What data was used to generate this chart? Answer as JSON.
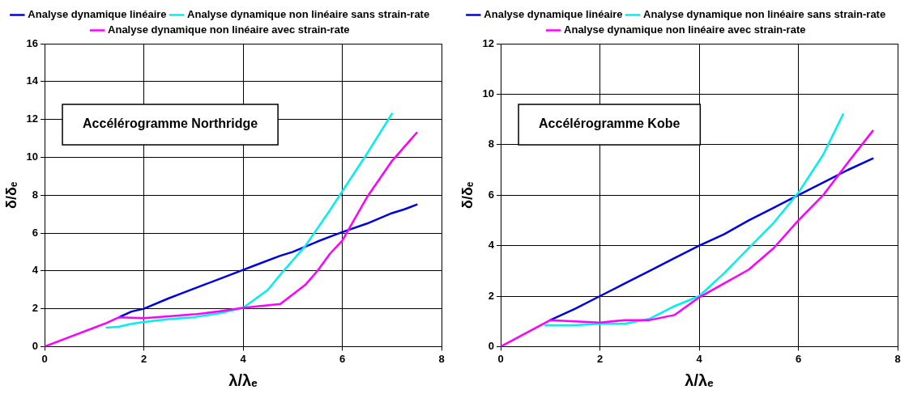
{
  "chart_data": [
    {
      "type": "line",
      "xlabel": "λ/λₑ",
      "ylabel": "δ/δₑ",
      "annotations": [
        "Accélérogramme Northridge"
      ],
      "xlim": [
        0,
        8
      ],
      "xticks": [
        0,
        2,
        4,
        6,
        8
      ],
      "ylim": [
        0,
        16
      ],
      "yticks": [
        0,
        2,
        4,
        6,
        8,
        10,
        12,
        14,
        16
      ],
      "grid": true,
      "legend": "top",
      "marker": "none",
      "line_style": "solid",
      "series": [
        {
          "name": "Analyse dynamique linéaire",
          "color": "#0000e6",
          "x": [
            1.5,
            1.75,
            2,
            2.5,
            2.75,
            3.25,
            3.5,
            4,
            4.25,
            4.75,
            5,
            5.5,
            5.75,
            6,
            6.5,
            7,
            7.25,
            7.5
          ],
          "values": [
            1.55,
            1.85,
            2,
            2.55,
            2.8,
            3.3,
            3.55,
            4.05,
            4.3,
            4.8,
            5,
            5.55,
            5.8,
            6.05,
            6.5,
            7.05,
            7.25,
            7.5
          ]
        },
        {
          "name": "Analyse dynamique non linéaire sans strain-rate",
          "color": "#00f0f0",
          "x": [
            1.25,
            1.5,
            1.75,
            2,
            2.5,
            3,
            3.5,
            4,
            4.5,
            4.75,
            5.25,
            5.75,
            6,
            6.5,
            7
          ],
          "values": [
            1,
            1.05,
            1.2,
            1.3,
            1.45,
            1.55,
            1.75,
            2.05,
            3,
            3.8,
            5.3,
            7.2,
            8.2,
            10.2,
            12.3
          ]
        },
        {
          "name": "Analyse dynamique non linéaire avec strain-rate",
          "color": "#ff00ff",
          "x": [
            0,
            0.5,
            1,
            1.25,
            1.5,
            2,
            2.5,
            3,
            3.5,
            4,
            4.75,
            5.25,
            5.5,
            5.75,
            6,
            6.5,
            7,
            7.5
          ],
          "values": [
            0,
            0.5,
            1,
            1.25,
            1.55,
            1.5,
            1.6,
            1.7,
            1.85,
            2.05,
            2.25,
            3.25,
            4,
            4.9,
            5.6,
            7.9,
            9.8,
            11.3
          ]
        }
      ]
    },
    {
      "type": "line",
      "xlabel": "λ/λₑ",
      "ylabel": "δ/δₑ",
      "annotations": [
        "Accélérogramme Kobe"
      ],
      "xlim": [
        0,
        8
      ],
      "xticks": [
        0,
        2,
        4,
        6,
        8
      ],
      "ylim": [
        0,
        12
      ],
      "yticks": [
        0,
        2,
        4,
        6,
        8,
        10,
        12
      ],
      "grid": true,
      "legend": "top",
      "marker": "none",
      "line_style": "solid",
      "series": [
        {
          "name": "Analyse dynamique linéaire",
          "color": "#0000e6",
          "x": [
            1,
            1.5,
            2,
            2.5,
            3,
            3.5,
            4,
            4.5,
            5,
            5.5,
            6,
            6.5,
            7,
            7.5
          ],
          "values": [
            1.05,
            1.5,
            2,
            2.5,
            3,
            3.5,
            4,
            4.45,
            5,
            5.5,
            6,
            6.5,
            7,
            7.45
          ]
        },
        {
          "name": "Analyse dynamique non linéaire sans strain-rate",
          "color": "#00f0f0",
          "x": [
            0.9,
            1.5,
            2,
            2.5,
            3,
            3.5,
            4,
            4.5,
            5,
            5.5,
            6,
            6.5,
            6.9
          ],
          "values": [
            0.85,
            0.85,
            0.9,
            0.9,
            1.1,
            1.6,
            2,
            2.9,
            3.9,
            4.9,
            6.1,
            7.6,
            9.2
          ]
        },
        {
          "name": "Analyse dynamique non linéaire avec strain-rate",
          "color": "#ff00ff",
          "x": [
            0,
            1,
            1.5,
            2,
            2.5,
            3,
            3.5,
            4,
            4.5,
            5,
            5.5,
            6,
            6.5,
            7,
            7.5
          ],
          "values": [
            0,
            1.05,
            1,
            0.95,
            1.05,
            1.05,
            1.25,
            1.95,
            2.5,
            3.05,
            3.9,
            5,
            6,
            7.3,
            8.55
          ]
        }
      ]
    }
  ]
}
